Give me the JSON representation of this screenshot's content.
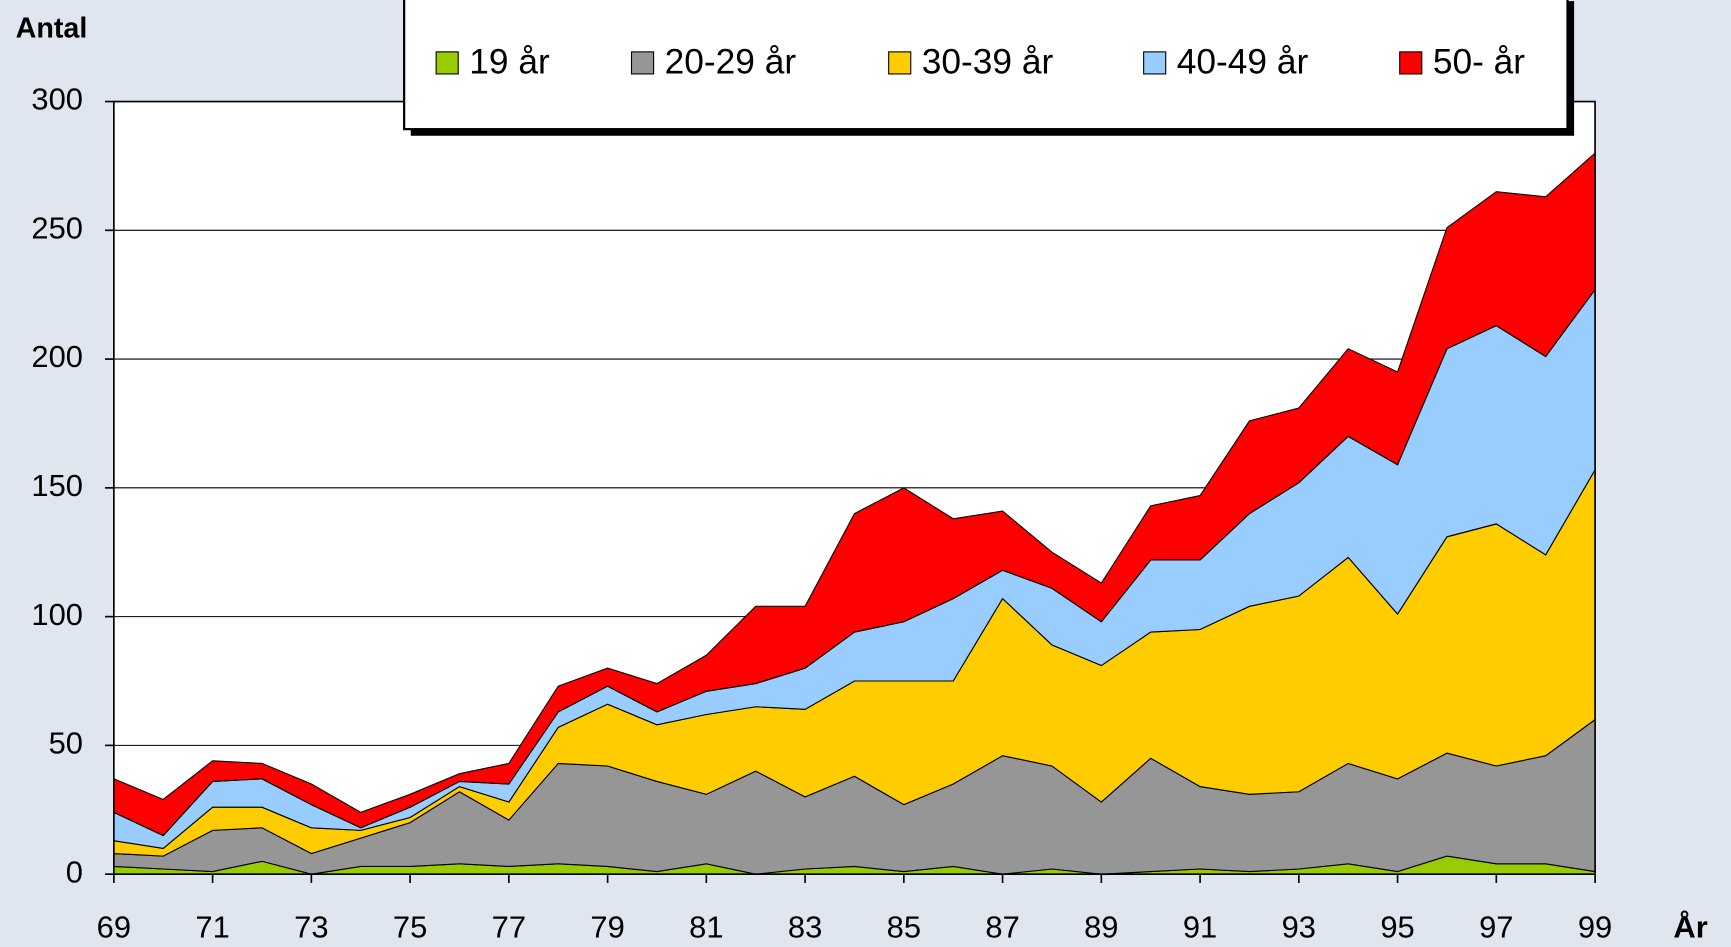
{
  "chart_data": {
    "type": "stacked-area",
    "y_label": "Antal",
    "x_label": "År",
    "x": [
      69,
      70,
      71,
      72,
      73,
      74,
      75,
      76,
      77,
      78,
      79,
      80,
      81,
      82,
      83,
      84,
      85,
      86,
      87,
      88,
      89,
      90,
      91,
      92,
      93,
      94,
      95,
      96,
      97,
      98,
      99
    ],
    "xlim": [
      69,
      99
    ],
    "xticks": [
      69,
      71,
      73,
      75,
      77,
      79,
      81,
      83,
      85,
      87,
      89,
      91,
      93,
      95,
      97,
      99
    ],
    "ylim": [
      0,
      300
    ],
    "yticks": [
      0,
      50,
      100,
      150,
      200,
      250,
      300
    ],
    "grid": true,
    "legend": "top",
    "series": [
      {
        "name": "19 år",
        "color": "#99cc00",
        "values": [
          3,
          2,
          1,
          5,
          0,
          3,
          3,
          4,
          3,
          4,
          3,
          1,
          4,
          0,
          2,
          3,
          1,
          3,
          0,
          2,
          0,
          1,
          2,
          1,
          2,
          4,
          1,
          7,
          4,
          4,
          1
        ]
      },
      {
        "name": "20-29 år",
        "color": "#969696",
        "values": [
          5,
          5,
          16,
          13,
          8,
          11,
          17,
          28,
          18,
          39,
          39,
          35,
          27,
          40,
          28,
          35,
          26,
          32,
          46,
          40,
          28,
          44,
          32,
          30,
          30,
          39,
          36,
          40,
          38,
          42,
          59
        ]
      },
      {
        "name": "30-39 år",
        "color": "#ffcc00",
        "values": [
          5,
          3,
          9,
          8,
          10,
          3,
          2,
          2,
          7,
          14,
          24,
          22,
          31,
          25,
          34,
          37,
          48,
          40,
          61,
          47,
          53,
          49,
          61,
          73,
          76,
          80,
          64,
          84,
          94,
          78,
          97
        ]
      },
      {
        "name": "40-49 år",
        "color": "#99ccff",
        "values": [
          11,
          5,
          10,
          11,
          9,
          1,
          4,
          2,
          7,
          6,
          7,
          5,
          9,
          9,
          16,
          19,
          23,
          32,
          11,
          22,
          17,
          28,
          27,
          36,
          44,
          47,
          58,
          73,
          77,
          77,
          70
        ]
      },
      {
        "name": "50- år",
        "color": "#ff0000",
        "values": [
          13,
          14,
          8,
          6,
          8,
          6,
          5,
          3,
          8,
          10,
          7,
          11,
          14,
          30,
          24,
          46,
          52,
          31,
          23,
          14,
          15,
          21,
          25,
          36,
          29,
          34,
          36,
          47,
          52,
          62,
          53
        ]
      }
    ]
  }
}
